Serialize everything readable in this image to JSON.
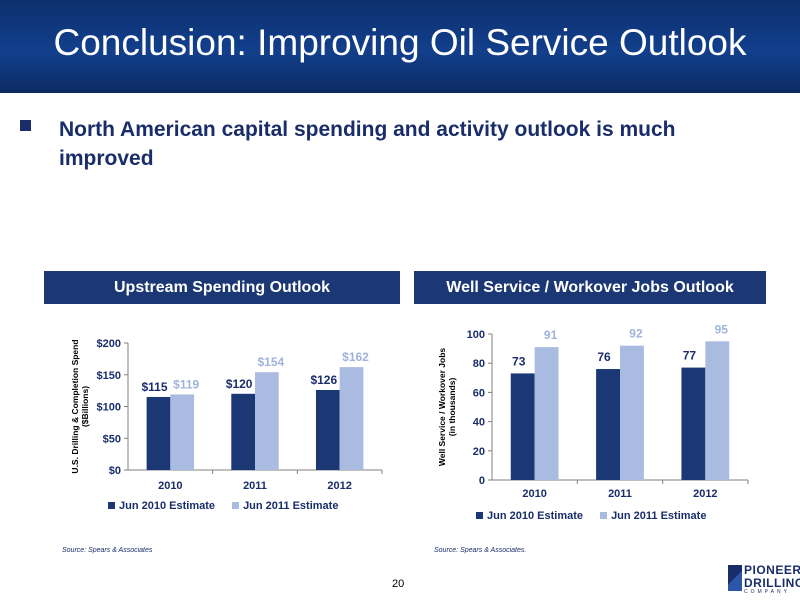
{
  "slide": {
    "title": "Conclusion: Improving Oil Service Outlook",
    "bullet": "North American capital spending and activity outlook is much improved",
    "page_number": "20"
  },
  "logo": {
    "line1": "PIONEER",
    "line2": "DRILLING",
    "line3": "COMPANY"
  },
  "colors": {
    "title_bar": "#123f8c",
    "series_dark": "#1b3875",
    "series_light": "#a9bbe0",
    "text": "#1a2d6b"
  },
  "chart_data": [
    {
      "type": "bar",
      "title": "Upstream Spending Outlook",
      "ylabel_line1": "U.S. Drilling & Completion Spend",
      "ylabel_line2": "($Billions)",
      "categories": [
        "2010",
        "2011",
        "2012"
      ],
      "series": [
        {
          "name": "Jun 2010 Estimate",
          "values": [
            115,
            120,
            126
          ],
          "labels": [
            "$115",
            "$120",
            "$126"
          ]
        },
        {
          "name": "Jun 2011 Estimate",
          "values": [
            119,
            154,
            162
          ],
          "labels": [
            "$119",
            "$154",
            "$162"
          ]
        }
      ],
      "ylim": [
        0,
        200
      ],
      "yticks": [
        0,
        50,
        100,
        150,
        200
      ],
      "ytick_labels": [
        "$0",
        "$50",
        "$100",
        "$150",
        "$200"
      ],
      "grid": false,
      "legend": "bottom",
      "source": "Source: Spears & Associates"
    },
    {
      "type": "bar",
      "title": "Well Service / Workover Jobs Outlook",
      "ylabel_line1": "Well Service / Workover Jobs",
      "ylabel_line2": "(in thousands)",
      "categories": [
        "2010",
        "2011",
        "2012"
      ],
      "series": [
        {
          "name": "Jun 2010 Estimate",
          "values": [
            73,
            76,
            77
          ],
          "labels": [
            "73",
            "76",
            "77"
          ]
        },
        {
          "name": "Jun 2011 Estimate",
          "values": [
            91,
            92,
            95
          ],
          "labels": [
            "91",
            "92",
            "95"
          ]
        }
      ],
      "ylim": [
        0,
        100
      ],
      "yticks": [
        0,
        20,
        40,
        60,
        80,
        100
      ],
      "ytick_labels": [
        "0",
        "20",
        "40",
        "60",
        "80",
        "100"
      ],
      "grid": false,
      "legend": "bottom",
      "source": "Source: Spears & Associates."
    }
  ]
}
